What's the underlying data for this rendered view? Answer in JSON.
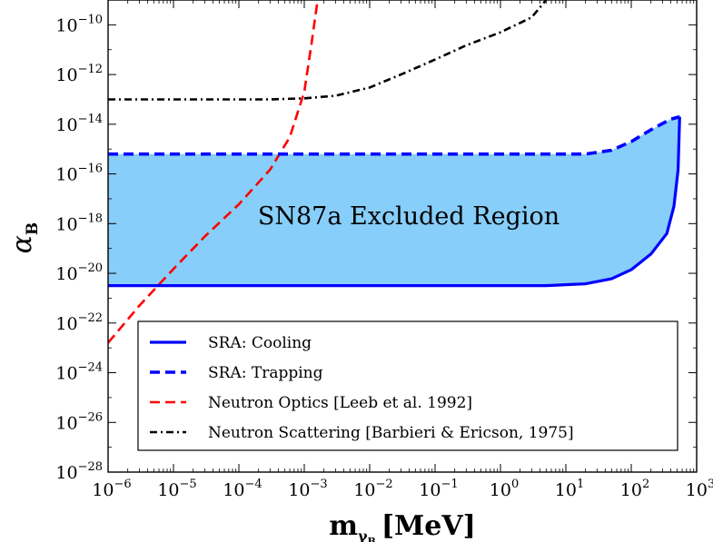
{
  "chart_data": {
    "type": "line",
    "xlabel": {
      "main": "m",
      "sub": "γ",
      "subsub": "B",
      "unit": "[MeV]"
    },
    "ylabel": {
      "main": "α",
      "sub": "B"
    },
    "x_scale": "log",
    "y_scale": "log",
    "xlim": [
      1e-06,
      1000
    ],
    "ylim": [
      1e-28,
      1e-09
    ],
    "x_ticks": [
      {
        "base": "10",
        "exp": "−6"
      },
      {
        "base": "10",
        "exp": "−5"
      },
      {
        "base": "10",
        "exp": "−4"
      },
      {
        "base": "10",
        "exp": "−3"
      },
      {
        "base": "10",
        "exp": "−2"
      },
      {
        "base": "10",
        "exp": "−1"
      },
      {
        "base": "10",
        "exp": "0"
      },
      {
        "base": "10",
        "exp": "1"
      },
      {
        "base": "10",
        "exp": "2"
      },
      {
        "base": "10",
        "exp": "3"
      }
    ],
    "y_ticks": [
      {
        "base": "10",
        "exp": "−28"
      },
      {
        "base": "10",
        "exp": "−26"
      },
      {
        "base": "10",
        "exp": "−24"
      },
      {
        "base": "10",
        "exp": "−22"
      },
      {
        "base": "10",
        "exp": "−20"
      },
      {
        "base": "10",
        "exp": "−18"
      },
      {
        "base": "10",
        "exp": "−16"
      },
      {
        "base": "10",
        "exp": "−14"
      },
      {
        "base": "10",
        "exp": "−12"
      },
      {
        "base": "10",
        "exp": "−10"
      }
    ],
    "grid": false,
    "legend_position": "bottom-right",
    "annotation": "SN87a Excluded Region",
    "region": {
      "fill_color": "#87CEFA",
      "upper": [
        [
          1e-06,
          6.3e-16
        ],
        [
          1,
          6.3e-16
        ],
        [
          20,
          6.3e-16
        ],
        [
          50,
          9e-16
        ],
        [
          100,
          2e-15
        ],
        [
          200,
          6e-15
        ],
        [
          400,
          1.6e-14
        ],
        [
          550,
          2e-14
        ]
      ],
      "lower": [
        [
          1e-06,
          3.2e-21
        ],
        [
          1,
          3.2e-21
        ],
        [
          5,
          3.2e-21
        ],
        [
          20,
          3.8e-21
        ],
        [
          50,
          6e-21
        ],
        [
          100,
          1.4e-20
        ],
        [
          200,
          6e-20
        ],
        [
          350,
          4e-19
        ],
        [
          450,
          5e-18
        ],
        [
          520,
          1.5e-16
        ],
        [
          550,
          2e-14
        ]
      ]
    },
    "series": [
      {
        "name": "SRA: Cooling",
        "color": "#0000ff",
        "style": "solid",
        "points": [
          [
            1e-06,
            3.2e-21
          ],
          [
            5,
            3.2e-21
          ],
          [
            20,
            3.8e-21
          ],
          [
            50,
            6e-21
          ],
          [
            100,
            1.4e-20
          ],
          [
            200,
            6e-20
          ],
          [
            350,
            4e-19
          ],
          [
            450,
            5e-18
          ],
          [
            520,
            1.5e-16
          ],
          [
            550,
            2e-14
          ]
        ]
      },
      {
        "name": "SRA: Trapping",
        "color": "#0000ff",
        "style": "dashed",
        "points": [
          [
            1e-06,
            6.3e-16
          ],
          [
            20,
            6.3e-16
          ],
          [
            50,
            9e-16
          ],
          [
            100,
            2e-15
          ],
          [
            200,
            6e-15
          ],
          [
            400,
            1.6e-14
          ],
          [
            550,
            2e-14
          ]
        ]
      },
      {
        "name": "Neutron Optics [Leeb et al. 1992]",
        "color": "#ff0000",
        "style": "dashed",
        "points": [
          [
            1e-06,
            1.6e-23
          ],
          [
            3e-06,
            5e-22
          ],
          [
            1e-05,
            1.5e-20
          ],
          [
            3e-05,
            3e-19
          ],
          [
            0.0001,
            6e-18
          ],
          [
            0.0003,
            1.5e-16
          ],
          [
            0.0006,
            3e-15
          ],
          [
            0.001,
            2e-13
          ],
          [
            0.0013,
            2e-11
          ],
          [
            0.0016,
            1e-09
          ]
        ]
      },
      {
        "name": "Neutron Scattering [Barbieri & Ericson, 1975]",
        "color": "#000000",
        "style": "dashdot",
        "points": [
          [
            1e-06,
            1e-13
          ],
          [
            0.0003,
            1e-13
          ],
          [
            0.001,
            1.1e-13
          ],
          [
            0.003,
            1.4e-13
          ],
          [
            0.01,
            3e-13
          ],
          [
            0.03,
            1e-12
          ],
          [
            0.1,
            4e-12
          ],
          [
            0.3,
            1.5e-11
          ],
          [
            1,
            5e-11
          ],
          [
            3,
            2e-10
          ],
          [
            5,
            1e-09
          ]
        ]
      }
    ]
  }
}
